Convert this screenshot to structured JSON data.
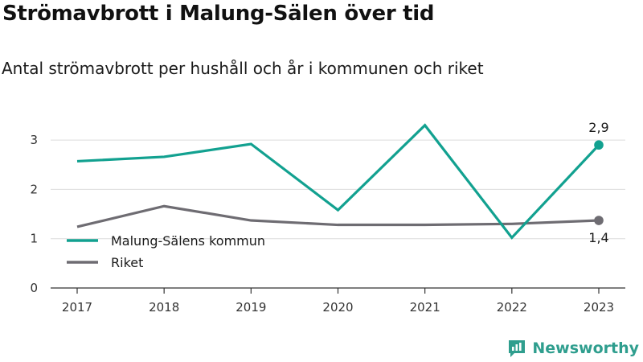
{
  "header": {
    "title": "Strömavbrott i Malung-Sälen över tid",
    "subtitle": "Antal strömavbrott per hushåll och år i kommunen och riket"
  },
  "brand": {
    "name": "Newsworthy",
    "color": "#2f9e8e"
  },
  "chart_data": {
    "type": "line",
    "title": "Strömavbrott i Malung-Sälen över tid",
    "subtitle": "Antal strömavbrott per hushåll och år i kommunen och riket",
    "xlabel": "",
    "ylabel": "",
    "categories": [
      "2017",
      "2018",
      "2019",
      "2020",
      "2021",
      "2022",
      "2023"
    ],
    "yticks": [
      "0",
      "1",
      "2",
      "3"
    ],
    "ylim": [
      0,
      3.5
    ],
    "grid": true,
    "legend_position": "bottom-left",
    "series": [
      {
        "name": "Malung-Sälens kommun",
        "color": "#12a190",
        "values": [
          2.57,
          2.66,
          2.92,
          1.58,
          3.3,
          1.02,
          2.9
        ],
        "end_label": "2,9"
      },
      {
        "name": "Riket",
        "color": "#6e6c72",
        "values": [
          1.24,
          1.66,
          1.37,
          1.28,
          1.28,
          1.3,
          1.37
        ],
        "end_label": "1,4"
      }
    ]
  }
}
